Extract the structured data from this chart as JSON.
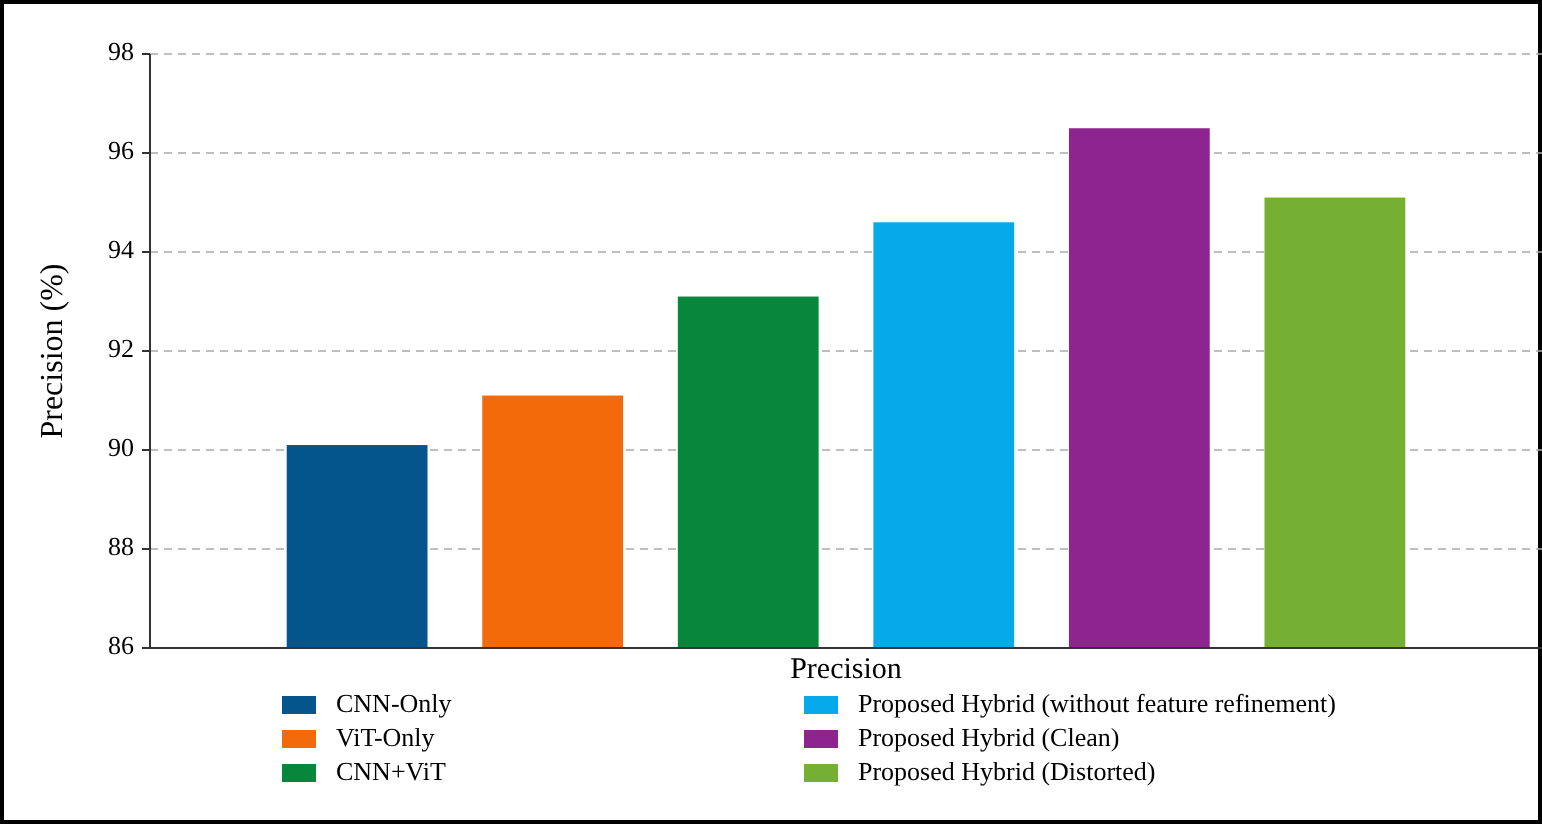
{
  "chart_data": {
    "type": "bar",
    "ylabel": "Precision (%)",
    "categories": [
      "Precision"
    ],
    "series": [
      {
        "name": "CNN-Only",
        "color": "#04558c",
        "values": [
          90.1
        ]
      },
      {
        "name": "ViT-Only",
        "color": "#f26a0a",
        "values": [
          91.1
        ]
      },
      {
        "name": "CNN+ViT",
        "color": "#06873c",
        "values": [
          93.1
        ]
      },
      {
        "name": "Proposed Hybrid (without feature refinement)",
        "color": "#04aaea",
        "values": [
          94.6
        ]
      },
      {
        "name": "Proposed Hybrid (Clean)",
        "color": "#8e2490",
        "values": [
          96.5
        ]
      },
      {
        "name": "Proposed Hybrid (Distorted)",
        "color": "#76b033",
        "values": [
          95.1
        ]
      }
    ],
    "ylim": [
      86,
      98
    ],
    "yticks": [
      86,
      88,
      90,
      92,
      94,
      96,
      98
    ],
    "grid": "y",
    "legend": "bottom"
  }
}
